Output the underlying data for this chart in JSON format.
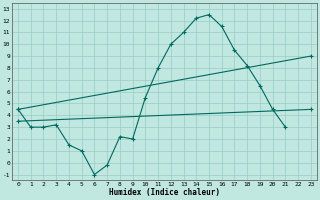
{
  "background_color": "#c0e8e0",
  "grid_color": "#98ccc4",
  "line_color": "#006860",
  "xlabel": "Humidex (Indice chaleur)",
  "xlim": [
    -0.5,
    23.5
  ],
  "ylim": [
    -1.5,
    13.5
  ],
  "xticks": [
    0,
    1,
    2,
    3,
    4,
    5,
    6,
    7,
    8,
    9,
    10,
    11,
    12,
    13,
    14,
    15,
    16,
    17,
    18,
    19,
    20,
    21,
    22,
    23
  ],
  "yticks": [
    -1,
    0,
    1,
    2,
    3,
    4,
    5,
    6,
    7,
    8,
    9,
    10,
    11,
    12,
    13
  ],
  "curve1_x": [
    0,
    1,
    2,
    3,
    4,
    5,
    6,
    7,
    8,
    9,
    10,
    11,
    12,
    13,
    14,
    15,
    16,
    17,
    18,
    19,
    20,
    21
  ],
  "curve1_y": [
    4.5,
    3.0,
    3.0,
    3.2,
    1.5,
    1.0,
    -1.0,
    -0.2,
    2.2,
    2.0,
    5.5,
    8.0,
    10.0,
    11.0,
    12.2,
    12.5,
    11.5,
    9.5,
    8.2,
    6.5,
    4.5,
    3.0
  ],
  "line2_x": [
    0,
    23
  ],
  "line2_y": [
    3.5,
    4.5
  ],
  "line3_x": [
    0,
    23
  ],
  "line3_y": [
    4.5,
    9.0
  ],
  "line3_markers_x": [
    0,
    10,
    14,
    17,
    20,
    23
  ],
  "line3_markers_y": [
    4.5,
    6.0,
    7.0,
    8.0,
    8.5,
    9.0
  ]
}
